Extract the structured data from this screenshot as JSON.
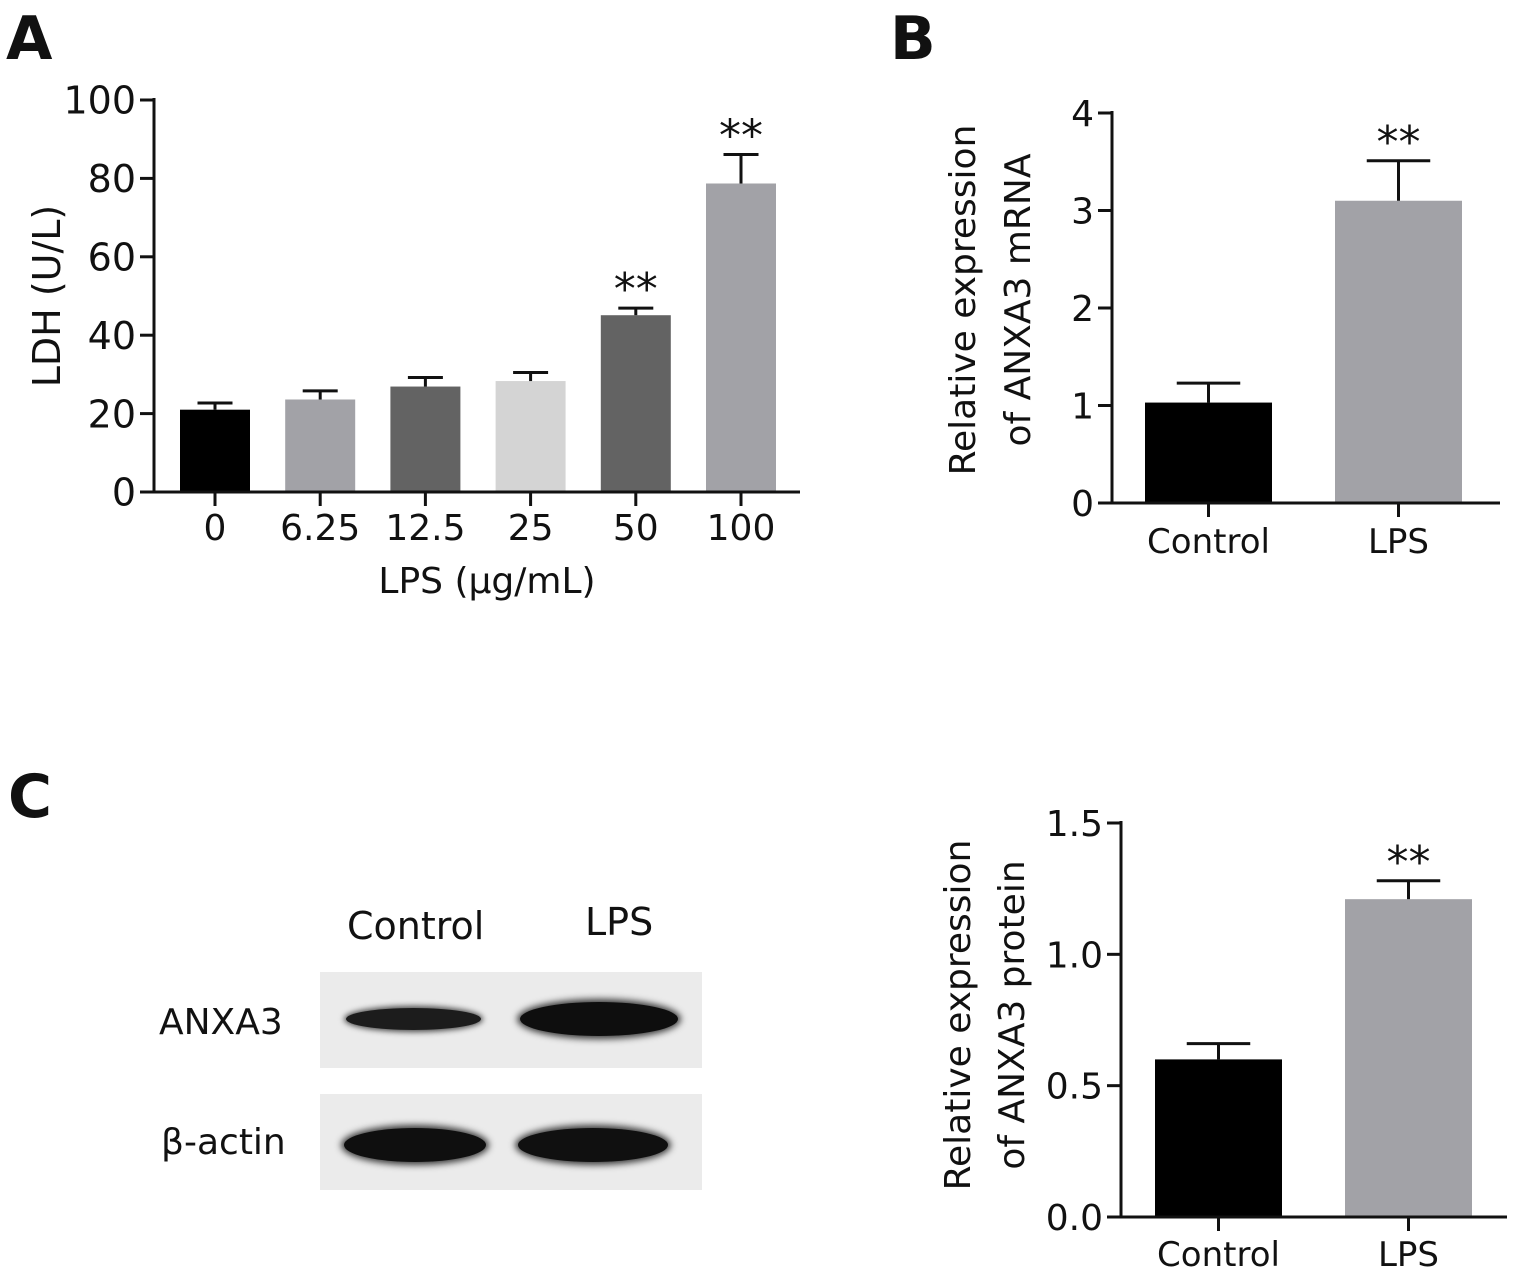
{
  "panels": {
    "a": "A",
    "b": "B",
    "c": "C"
  },
  "colors": {
    "black": "#000000",
    "grey_medium": "#a2a2a7",
    "grey_dark": "#636363",
    "grey_light": "#d4d4d4"
  },
  "chart_data": [
    {
      "type": "bar",
      "panel": "A",
      "categories": [
        "0",
        "6.25",
        "12.5",
        "25",
        "50",
        "100"
      ],
      "values": [
        21,
        23.6,
        26.9,
        28.3,
        45.1,
        78.7
      ],
      "errors": [
        1.7,
        2.2,
        2.3,
        2.2,
        1.8,
        7.4
      ],
      "colors": [
        "#000000",
        "#a2a2a7",
        "#636363",
        "#d4d4d4",
        "#636363",
        "#a2a2a7"
      ],
      "annotations": [
        "",
        "",
        "",
        "",
        "**",
        "**"
      ],
      "xlabel": "LPS (μg/mL)",
      "ylabel": "LDH (U/L)",
      "ylim": [
        0,
        100
      ],
      "yticks": [
        "0",
        "20",
        "40",
        "60",
        "80",
        "100"
      ],
      "grid": false
    },
    {
      "type": "bar",
      "panel": "B",
      "categories": [
        "Control",
        "LPS"
      ],
      "values": [
        1.03,
        3.1
      ],
      "errors": [
        0.2,
        0.41
      ],
      "colors": [
        "#000000",
        "#a2a2a7"
      ],
      "annotations": [
        "",
        "**"
      ],
      "xlabel": "",
      "ylabel": [
        "Relative expression",
        "of ANXA3 mRNA"
      ],
      "ylim": [
        0,
        4
      ],
      "yticks": [
        "0",
        "1",
        "2",
        "3",
        "4"
      ],
      "grid": false
    },
    {
      "type": "bar",
      "panel": "C",
      "categories": [
        "Control",
        "LPS"
      ],
      "values": [
        0.6,
        1.21
      ],
      "errors": [
        0.06,
        0.07
      ],
      "colors": [
        "#000000",
        "#a2a2a7"
      ],
      "annotations": [
        "",
        "**"
      ],
      "xlabel": "",
      "ylabel": [
        "Relative expression",
        "of ANXA3 protein"
      ],
      "ylim": [
        0,
        1.5
      ],
      "yticks": [
        "0.0",
        "0.5",
        "1.0",
        "1.5"
      ],
      "grid": false
    }
  ],
  "blot": {
    "columns": [
      "Control",
      "LPS"
    ],
    "rows": [
      "ANXA3",
      "β-actin"
    ]
  }
}
